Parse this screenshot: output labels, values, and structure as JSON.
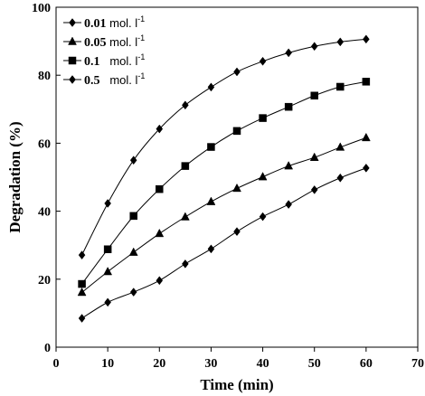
{
  "chart_data": {
    "type": "line",
    "xlabel": "Time (min)",
    "ylabel": "Degradation (%)",
    "xlim": [
      0,
      70
    ],
    "ylim": [
      0,
      100
    ],
    "xticks": [
      0,
      10,
      20,
      30,
      40,
      50,
      60,
      70
    ],
    "yticks": [
      0,
      20,
      40,
      60,
      80,
      100
    ],
    "grid": false,
    "legend_position": "top-left",
    "x": [
      5,
      10,
      15,
      20,
      25,
      30,
      35,
      40,
      45,
      50,
      55,
      60
    ],
    "series": [
      {
        "name": "0.01 mol. l-1",
        "label_bold": "0.01",
        "label_unit": " mol. l",
        "label_sup": "-1",
        "marker": "diamond",
        "values": [
          8.5,
          13.2,
          16.2,
          19.6,
          24.5,
          28.9,
          34.0,
          38.4,
          42.0,
          46.3,
          49.8,
          52.7
        ]
      },
      {
        "name": "0.05 mol. l-1",
        "label_bold": "0.05",
        "label_unit": " mol. l",
        "label_sup": "-1",
        "marker": "triangle",
        "values": [
          16.1,
          22.2,
          27.9,
          33.4,
          38.3,
          42.8,
          46.7,
          50.1,
          53.3,
          55.8,
          58.8,
          61.6
        ]
      },
      {
        "name": "0.1 mol. l-1",
        "label_bold": "0.1",
        "label_unit": "   mol. l",
        "label_sup": "-1",
        "marker": "square",
        "values": [
          18.6,
          28.8,
          38.6,
          46.5,
          53.3,
          58.9,
          63.6,
          67.4,
          70.7,
          74.0,
          76.6,
          78.1
        ]
      },
      {
        "name": "0.5 mol. l-1",
        "label_bold": "0.5",
        "label_unit": "   mol. l",
        "label_sup": "-1",
        "marker": "diamond",
        "values": [
          27.1,
          42.3,
          55.0,
          64.2,
          71.2,
          76.5,
          81.0,
          84.1,
          86.6,
          88.5,
          89.8,
          90.6
        ]
      }
    ]
  }
}
